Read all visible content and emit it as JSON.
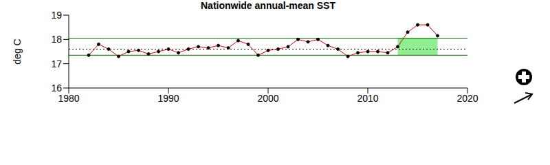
{
  "chart_data": {
    "type": "line",
    "title": "Nationwide annual-mean SST",
    "y_label": "deg C",
    "x": [
      1982,
      1983,
      1984,
      1985,
      1986,
      1987,
      1988,
      1989,
      1990,
      1991,
      1992,
      1993,
      1994,
      1995,
      1996,
      1997,
      1998,
      1999,
      2000,
      2001,
      2002,
      2003,
      2004,
      2005,
      2006,
      2007,
      2008,
      2009,
      2010,
      2011,
      2012,
      2013,
      2014,
      2015,
      2016,
      2017
    ],
    "series": [
      {
        "name": "SST",
        "color": "#cc0000",
        "marker": "circle",
        "values": [
          17.35,
          17.8,
          17.6,
          17.3,
          17.5,
          17.55,
          17.4,
          17.5,
          17.6,
          17.45,
          17.6,
          17.7,
          17.65,
          17.75,
          17.65,
          17.95,
          17.8,
          17.35,
          17.55,
          17.6,
          17.7,
          18.0,
          17.9,
          18.0,
          17.75,
          17.6,
          17.3,
          17.45,
          17.5,
          17.5,
          17.45,
          17.7,
          18.3,
          18.6,
          18.6,
          18.15
        ]
      }
    ],
    "reference_lines": [
      {
        "value": 18.05,
        "color": "#006400",
        "line_style": "solid"
      },
      {
        "value": 17.35,
        "color": "#006400",
        "line_style": "solid"
      },
      {
        "value": 17.6,
        "color": "#000000",
        "line_style": "dotted"
      }
    ],
    "shaded_region": {
      "x": [
        2013,
        2017
      ],
      "y": [
        17.35,
        18.05
      ],
      "color": "#90ee90"
    },
    "xlim": [
      1980,
      2020
    ],
    "xticks": [
      1980,
      1990,
      2000,
      2010,
      2020
    ],
    "ylim": [
      16,
      19
    ],
    "yticks": [
      16,
      17,
      18,
      19
    ],
    "grid": false
  }
}
